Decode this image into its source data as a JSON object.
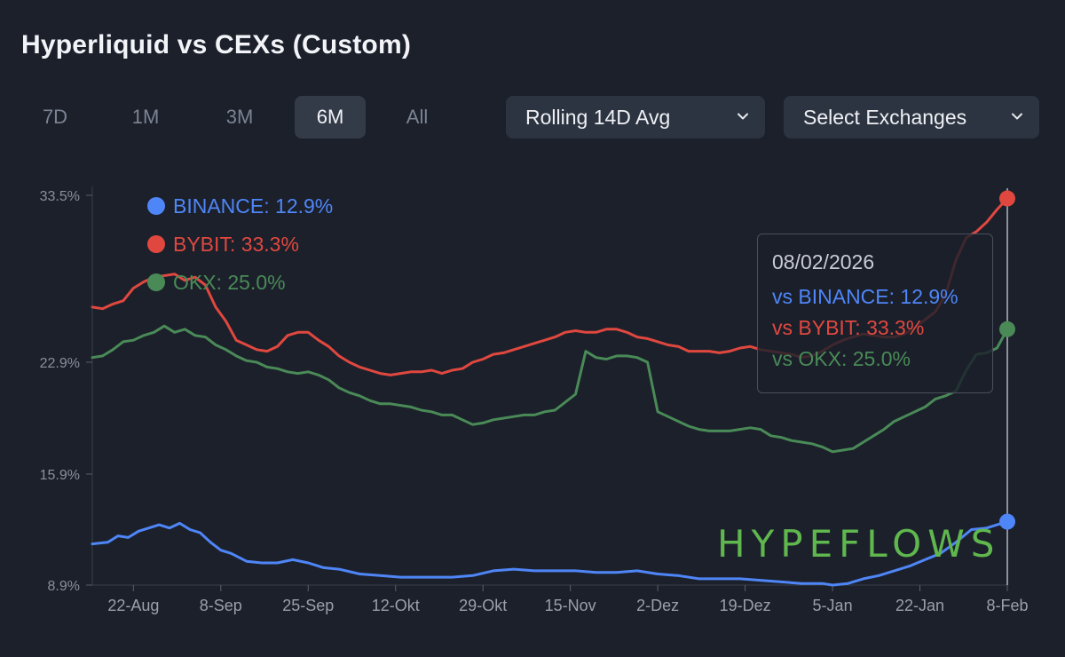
{
  "title": "Hyperliquid vs CEXs (Custom)",
  "tabs": [
    {
      "label": "7D",
      "active": false
    },
    {
      "label": "1M",
      "active": false
    },
    {
      "label": "3M",
      "active": false
    },
    {
      "label": "6M",
      "active": true
    },
    {
      "label": "All",
      "active": false
    }
  ],
  "controls": {
    "aggregation": "Rolling 14D Avg",
    "exchanges": "Select Exchanges"
  },
  "legend": [
    {
      "label": "BINANCE: 12.9%",
      "color": "#4f86f7"
    },
    {
      "label": "BYBIT: 33.3%",
      "color": "#e0483f"
    },
    {
      "label": "OKX: 25.0%",
      "color": "#4a8a57"
    }
  ],
  "tooltip": {
    "date": "08/02/2026",
    "rows": [
      {
        "label": "vs BINANCE: 12.9%",
        "color": "#4f86f7"
      },
      {
        "label": "vs BYBIT: 33.3%",
        "color": "#e0483f"
      },
      {
        "label": "vs OKX: 25.0%",
        "color": "#4a8a57"
      }
    ]
  },
  "watermark": "HYPEFLOWS",
  "chart_data": {
    "type": "line",
    "y_ticks": [
      "33.5%",
      "22.9%",
      "15.9%",
      "8.9%"
    ],
    "y_tick_values": [
      33.5,
      22.9,
      15.9,
      8.9
    ],
    "x_ticks": [
      "22-Aug",
      "8-Sep",
      "25-Sep",
      "12-Okt",
      "29-Okt",
      "15-Nov",
      "2-Dez",
      "19-Dez",
      "5-Jan",
      "22-Jan",
      "8-Feb"
    ],
    "x_tick_positions": [
      8,
      25,
      42,
      59,
      76,
      93,
      110,
      127,
      144,
      161,
      178
    ],
    "xlim": [
      0,
      178
    ],
    "series": [
      {
        "name": "BINANCE",
        "color": "#4f86f7",
        "points": [
          [
            0,
            11.5
          ],
          [
            3,
            11.6
          ],
          [
            5,
            12.0
          ],
          [
            7,
            11.9
          ],
          [
            9,
            12.3
          ],
          [
            11,
            12.5
          ],
          [
            13,
            12.7
          ],
          [
            15,
            12.5
          ],
          [
            17,
            12.8
          ],
          [
            19,
            12.4
          ],
          [
            21,
            12.2
          ],
          [
            23,
            11.6
          ],
          [
            25,
            11.1
          ],
          [
            27,
            10.9
          ],
          [
            30,
            10.4
          ],
          [
            33,
            10.3
          ],
          [
            36,
            10.3
          ],
          [
            39,
            10.5
          ],
          [
            42,
            10.3
          ],
          [
            45,
            10.0
          ],
          [
            48,
            9.9
          ],
          [
            52,
            9.6
          ],
          [
            56,
            9.5
          ],
          [
            60,
            9.4
          ],
          [
            65,
            9.4
          ],
          [
            70,
            9.4
          ],
          [
            74,
            9.5
          ],
          [
            78,
            9.8
          ],
          [
            82,
            9.9
          ],
          [
            86,
            9.8
          ],
          [
            90,
            9.8
          ],
          [
            94,
            9.8
          ],
          [
            98,
            9.7
          ],
          [
            102,
            9.7
          ],
          [
            106,
            9.8
          ],
          [
            110,
            9.6
          ],
          [
            114,
            9.5
          ],
          [
            118,
            9.3
          ],
          [
            122,
            9.3
          ],
          [
            126,
            9.3
          ],
          [
            130,
            9.2
          ],
          [
            134,
            9.1
          ],
          [
            138,
            9.0
          ],
          [
            142,
            9.0
          ],
          [
            144,
            8.9
          ],
          [
            147,
            9.0
          ],
          [
            150,
            9.3
          ],
          [
            153,
            9.5
          ],
          [
            156,
            9.8
          ],
          [
            159,
            10.1
          ],
          [
            162,
            10.5
          ],
          [
            165,
            10.9
          ],
          [
            168,
            11.6
          ],
          [
            171,
            12.4
          ],
          [
            174,
            12.5
          ],
          [
            176,
            12.7
          ],
          [
            178,
            12.9
          ]
        ]
      },
      {
        "name": "BYBIT",
        "color": "#e0483f",
        "points": [
          [
            0,
            26.4
          ],
          [
            2,
            26.3
          ],
          [
            4,
            26.6
          ],
          [
            6,
            26.8
          ],
          [
            8,
            27.6
          ],
          [
            10,
            28.0
          ],
          [
            12,
            28.3
          ],
          [
            14,
            28.4
          ],
          [
            16,
            28.5
          ],
          [
            18,
            28.1
          ],
          [
            20,
            28.3
          ],
          [
            22,
            27.8
          ],
          [
            24,
            26.4
          ],
          [
            26,
            25.5
          ],
          [
            28,
            24.3
          ],
          [
            30,
            24.0
          ],
          [
            32,
            23.7
          ],
          [
            34,
            23.6
          ],
          [
            36,
            23.9
          ],
          [
            38,
            24.6
          ],
          [
            40,
            24.8
          ],
          [
            42,
            24.8
          ],
          [
            44,
            24.3
          ],
          [
            46,
            23.9
          ],
          [
            48,
            23.3
          ],
          [
            50,
            22.9
          ],
          [
            52,
            22.6
          ],
          [
            54,
            22.4
          ],
          [
            56,
            22.2
          ],
          [
            58,
            22.1
          ],
          [
            60,
            22.2
          ],
          [
            62,
            22.3
          ],
          [
            64,
            22.3
          ],
          [
            66,
            22.4
          ],
          [
            68,
            22.2
          ],
          [
            70,
            22.4
          ],
          [
            72,
            22.5
          ],
          [
            74,
            22.9
          ],
          [
            76,
            23.1
          ],
          [
            78,
            23.4
          ],
          [
            80,
            23.5
          ],
          [
            82,
            23.7
          ],
          [
            84,
            23.9
          ],
          [
            86,
            24.1
          ],
          [
            88,
            24.3
          ],
          [
            90,
            24.5
          ],
          [
            92,
            24.8
          ],
          [
            94,
            24.9
          ],
          [
            96,
            24.8
          ],
          [
            98,
            24.8
          ],
          [
            100,
            25.0
          ],
          [
            102,
            25.0
          ],
          [
            104,
            24.8
          ],
          [
            106,
            24.5
          ],
          [
            108,
            24.4
          ],
          [
            110,
            24.2
          ],
          [
            112,
            24.0
          ],
          [
            114,
            23.9
          ],
          [
            116,
            23.6
          ],
          [
            118,
            23.6
          ],
          [
            120,
            23.6
          ],
          [
            122,
            23.5
          ],
          [
            124,
            23.6
          ],
          [
            126,
            23.8
          ],
          [
            128,
            23.9
          ],
          [
            130,
            23.7
          ],
          [
            132,
            23.6
          ],
          [
            134,
            23.5
          ],
          [
            136,
            23.4
          ],
          [
            138,
            23.2
          ],
          [
            140,
            23.3
          ],
          [
            142,
            23.6
          ],
          [
            144,
            24.0
          ],
          [
            146,
            24.3
          ],
          [
            148,
            24.5
          ],
          [
            150,
            24.7
          ],
          [
            152,
            24.6
          ],
          [
            154,
            24.5
          ],
          [
            156,
            24.5
          ],
          [
            158,
            24.7
          ],
          [
            160,
            25.1
          ],
          [
            162,
            25.6
          ],
          [
            164,
            26.1
          ],
          [
            166,
            27.2
          ],
          [
            168,
            29.4
          ],
          [
            170,
            30.8
          ],
          [
            172,
            31.2
          ],
          [
            174,
            31.8
          ],
          [
            176,
            32.6
          ],
          [
            178,
            33.3
          ]
        ]
      },
      {
        "name": "OKX",
        "color": "#4a8a57",
        "points": [
          [
            0,
            23.2
          ],
          [
            2,
            23.3
          ],
          [
            4,
            23.7
          ],
          [
            6,
            24.2
          ],
          [
            8,
            24.3
          ],
          [
            10,
            24.6
          ],
          [
            12,
            24.8
          ],
          [
            14,
            25.2
          ],
          [
            16,
            24.8
          ],
          [
            18,
            25.0
          ],
          [
            20,
            24.6
          ],
          [
            22,
            24.5
          ],
          [
            24,
            24.0
          ],
          [
            26,
            23.7
          ],
          [
            28,
            23.3
          ],
          [
            30,
            23.0
          ],
          [
            32,
            22.9
          ],
          [
            34,
            22.6
          ],
          [
            36,
            22.5
          ],
          [
            38,
            22.3
          ],
          [
            40,
            22.2
          ],
          [
            42,
            22.3
          ],
          [
            44,
            22.1
          ],
          [
            46,
            21.8
          ],
          [
            48,
            21.3
          ],
          [
            50,
            21.0
          ],
          [
            52,
            20.8
          ],
          [
            54,
            20.5
          ],
          [
            56,
            20.3
          ],
          [
            58,
            20.3
          ],
          [
            60,
            20.2
          ],
          [
            62,
            20.1
          ],
          [
            64,
            19.9
          ],
          [
            66,
            19.8
          ],
          [
            68,
            19.6
          ],
          [
            70,
            19.6
          ],
          [
            72,
            19.3
          ],
          [
            74,
            19.0
          ],
          [
            76,
            19.1
          ],
          [
            78,
            19.3
          ],
          [
            80,
            19.4
          ],
          [
            82,
            19.5
          ],
          [
            84,
            19.6
          ],
          [
            86,
            19.6
          ],
          [
            88,
            19.8
          ],
          [
            90,
            19.9
          ],
          [
            92,
            20.4
          ],
          [
            94,
            20.9
          ],
          [
            96,
            23.6
          ],
          [
            98,
            23.2
          ],
          [
            100,
            23.1
          ],
          [
            102,
            23.3
          ],
          [
            104,
            23.3
          ],
          [
            106,
            23.2
          ],
          [
            108,
            22.9
          ],
          [
            110,
            19.8
          ],
          [
            112,
            19.5
          ],
          [
            114,
            19.2
          ],
          [
            116,
            18.9
          ],
          [
            118,
            18.7
          ],
          [
            120,
            18.6
          ],
          [
            122,
            18.6
          ],
          [
            124,
            18.6
          ],
          [
            126,
            18.7
          ],
          [
            128,
            18.8
          ],
          [
            130,
            18.7
          ],
          [
            132,
            18.3
          ],
          [
            134,
            18.2
          ],
          [
            136,
            18.0
          ],
          [
            138,
            17.9
          ],
          [
            140,
            17.8
          ],
          [
            142,
            17.6
          ],
          [
            144,
            17.3
          ],
          [
            146,
            17.4
          ],
          [
            148,
            17.5
          ],
          [
            150,
            17.9
          ],
          [
            152,
            18.3
          ],
          [
            154,
            18.7
          ],
          [
            156,
            19.2
          ],
          [
            158,
            19.5
          ],
          [
            160,
            19.8
          ],
          [
            162,
            20.1
          ],
          [
            164,
            20.6
          ],
          [
            166,
            20.8
          ],
          [
            168,
            21.1
          ],
          [
            170,
            22.4
          ],
          [
            172,
            23.4
          ],
          [
            174,
            23.5
          ],
          [
            176,
            23.8
          ],
          [
            178,
            25.0
          ]
        ]
      }
    ]
  }
}
